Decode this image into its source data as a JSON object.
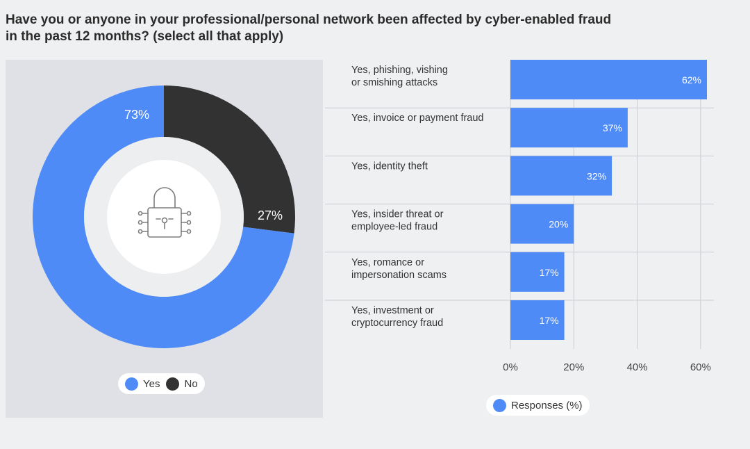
{
  "title_lines": [
    "Have you or anyone in your professional/personal network been affected by cyber-enabled fraud",
    "in the past 12 months? (select all that apply)"
  ],
  "colors": {
    "yes": "#4f8bf7",
    "no": "#323232",
    "bar": "#4f8bf7",
    "panel": "#dfe1e6"
  },
  "center_icon": "lock-circuit-icon",
  "donut_legend": {
    "yes": "Yes",
    "no": "No"
  },
  "bar_legend": {
    "label": "Responses (%)"
  },
  "chart_data": [
    {
      "type": "pie",
      "style": "donut",
      "categories": [
        "Yes",
        "No"
      ],
      "values": [
        73,
        27
      ],
      "labels": [
        "73%",
        "27%"
      ]
    },
    {
      "type": "bar",
      "orientation": "horizontal",
      "categories": [
        [
          "Yes, phishing, vishing",
          "or smishing attacks"
        ],
        [
          "Yes, invoice or payment fraud"
        ],
        [
          "Yes, identity theft"
        ],
        [
          "Yes, insider threat or",
          "employee-led fraud"
        ],
        [
          "Yes, romance or",
          "impersonation scams"
        ],
        [
          "Yes, investment or",
          "cryptocurrency fraud"
        ]
      ],
      "series": [
        {
          "name": "Responses (%)",
          "values": [
            62,
            37,
            32,
            20,
            17,
            17
          ]
        }
      ],
      "value_labels": [
        "62%",
        "37%",
        "32%",
        "20%",
        "17%",
        "17%"
      ],
      "xlim": [
        0,
        62
      ],
      "ticks": [
        "0%",
        "20%",
        "40%",
        "60%"
      ],
      "tick_values": [
        0,
        20,
        40,
        60
      ],
      "grid": true
    }
  ]
}
